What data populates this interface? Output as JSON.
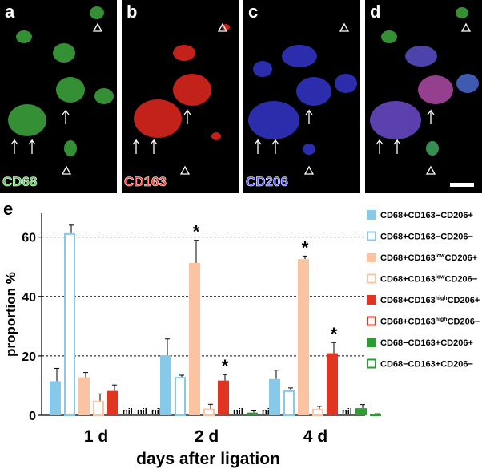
{
  "panels": [
    {
      "letter": "a",
      "label": "CD68",
      "color": "#4fd04f"
    },
    {
      "letter": "b",
      "label": "CD163",
      "color": "#ff3a2a"
    },
    {
      "letter": "c",
      "label": "CD206",
      "color": "#5a5cff"
    },
    {
      "letter": "d",
      "label": "",
      "color": ""
    }
  ],
  "chart_data": {
    "type": "bar",
    "panel_letter": "e",
    "categories": [
      "1 d",
      "2 d",
      "4 d"
    ],
    "xlabel": "days after ligation",
    "ylabel": "proportion %",
    "ylim": [
      0,
      68
    ],
    "yticks": [
      0,
      20,
      40,
      60
    ],
    "grid": "dashed horizontal at 20, 40, 60",
    "legend_position": "right",
    "series": [
      {
        "name": "CD68+CD163−CD206+",
        "color": "#86c9e8",
        "filled": true,
        "values": [
          11.5,
          20.2,
          12.2
        ],
        "errors": [
          4.3,
          5.5,
          3.0
        ],
        "nil": [
          false,
          false,
          false
        ]
      },
      {
        "name": "CD68+CD163−CD206−",
        "color": "#86c9e8",
        "filled": false,
        "values": [
          61.3,
          12.9,
          8.4
        ],
        "errors": [
          2.7,
          0.6,
          0.8
        ],
        "nil": [
          false,
          false,
          false
        ]
      },
      {
        "name": "CD68+CD163lowCD206+",
        "color": "#fcc3a3",
        "filled": true,
        "values": [
          12.8,
          51.3,
          52.6
        ],
        "errors": [
          1.6,
          7.6,
          1.0
        ],
        "nil": [
          false,
          false,
          false
        ]
      },
      {
        "name": "CD68+CD163lowCD206−",
        "color": "#fcc3a3",
        "filled": false,
        "values": [
          4.9,
          2.3,
          2.2
        ],
        "errors": [
          2.3,
          1.4,
          0.8
        ],
        "nil": [
          false,
          false,
          false
        ]
      },
      {
        "name": "CD68+CD163highCD206+",
        "color": "#e03520",
        "filled": true,
        "values": [
          8.2,
          11.7,
          20.9
        ],
        "errors": [
          2.0,
          2.0,
          3.6
        ],
        "nil": [
          false,
          false,
          false
        ]
      },
      {
        "name": "CD68+CD163highCD206−",
        "color": "#e03520",
        "filled": false,
        "values": [
          0,
          0,
          0
        ],
        "errors": [
          0,
          0,
          0
        ],
        "nil": [
          true,
          true,
          true
        ]
      },
      {
        "name": "CD68−CD163+CD206+",
        "color": "#2e9b35",
        "filled": true,
        "values": [
          0,
          0.9,
          2.4
        ],
        "errors": [
          0,
          0.6,
          1.2
        ],
        "nil": [
          true,
          false,
          false
        ]
      },
      {
        "name": "CD68−CD163+CD206−",
        "color": "#2e9b35",
        "filled": false,
        "values": [
          0,
          0,
          0.4
        ],
        "errors": [
          0,
          0,
          0.1
        ],
        "nil": [
          true,
          true,
          false
        ]
      }
    ],
    "legend_labels": [
      {
        "main": "CD68+CD163−CD206+",
        "sup": "",
        "tail": ""
      },
      {
        "main": "CD68+CD163−CD206−",
        "sup": "",
        "tail": ""
      },
      {
        "main": "CD68+CD163",
        "sup": "low",
        "tail": "CD206+"
      },
      {
        "main": "CD68+CD163",
        "sup": "low",
        "tail": "CD206−"
      },
      {
        "main": "CD68+CD163",
        "sup": "high",
        "tail": "CD206+"
      },
      {
        "main": "CD68+CD163",
        "sup": "high",
        "tail": "CD206−"
      },
      {
        "main": "CD68−CD163+CD206+",
        "sup": "",
        "tail": ""
      },
      {
        "main": "CD68−CD163+CD206−",
        "sup": "",
        "tail": ""
      }
    ],
    "nil_text": "nil",
    "significance_marker": "*",
    "significant": [
      {
        "series": 2,
        "category": 1
      },
      {
        "series": 2,
        "category": 2
      },
      {
        "series": 4,
        "category": 1
      },
      {
        "series": 4,
        "category": 2
      }
    ]
  }
}
